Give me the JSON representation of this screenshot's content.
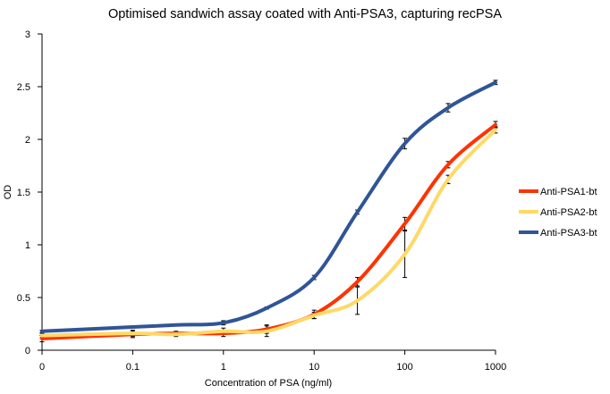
{
  "chart_data": {
    "type": "line",
    "title": "Optimised sandwich assay coated with Anti-PSA3, capturing recPSA",
    "xlabel": "Concentration of PSA (ng/ml)",
    "ylabel": "OD",
    "x_ticks": [
      "0",
      "0.1",
      "1",
      "10",
      "100",
      "1000"
    ],
    "y_ticks": [
      "0",
      "0.5",
      "1",
      "1.5",
      "2",
      "2.5",
      "3"
    ],
    "ylim": [
      0,
      3
    ],
    "x_scale": "log",
    "legend_position": "right",
    "grid": false,
    "series": [
      {
        "name": "Anti-PSA1-bt",
        "color": "#ff3300",
        "x": [
          0.01,
          0.1,
          0.3,
          1,
          3,
          10,
          30,
          100,
          300,
          1000
        ],
        "y": [
          0.11,
          0.15,
          0.16,
          0.16,
          0.2,
          0.34,
          0.65,
          1.2,
          1.76,
          2.14
        ],
        "err": [
          0.03,
          0.03,
          0.02,
          0.03,
          0.04,
          0.04,
          0.04,
          0.06,
          0.03,
          0.03
        ]
      },
      {
        "name": "Anti-PSA2-bt",
        "color": "#ffd966",
        "x": [
          0.01,
          0.1,
          0.3,
          1,
          3,
          10,
          30,
          100,
          300,
          1000
        ],
        "y": [
          0.14,
          0.16,
          0.15,
          0.18,
          0.18,
          0.33,
          0.47,
          0.91,
          1.62,
          2.09
        ],
        "err": [
          0.02,
          0.03,
          0.02,
          0.03,
          0.05,
          0.03,
          0.13,
          0.22,
          0.04,
          0.03
        ]
      },
      {
        "name": "Anti-PSA3-bt",
        "color": "#2f5597",
        "x": [
          0.01,
          0.1,
          0.3,
          1,
          3,
          10,
          30,
          100,
          300,
          1000
        ],
        "y": [
          0.18,
          0.22,
          0.24,
          0.26,
          0.4,
          0.69,
          1.31,
          1.96,
          2.3,
          2.54
        ],
        "err": [
          0.01,
          0.01,
          0.01,
          0.02,
          0.01,
          0.02,
          0.02,
          0.05,
          0.04,
          0.02
        ]
      }
    ]
  }
}
